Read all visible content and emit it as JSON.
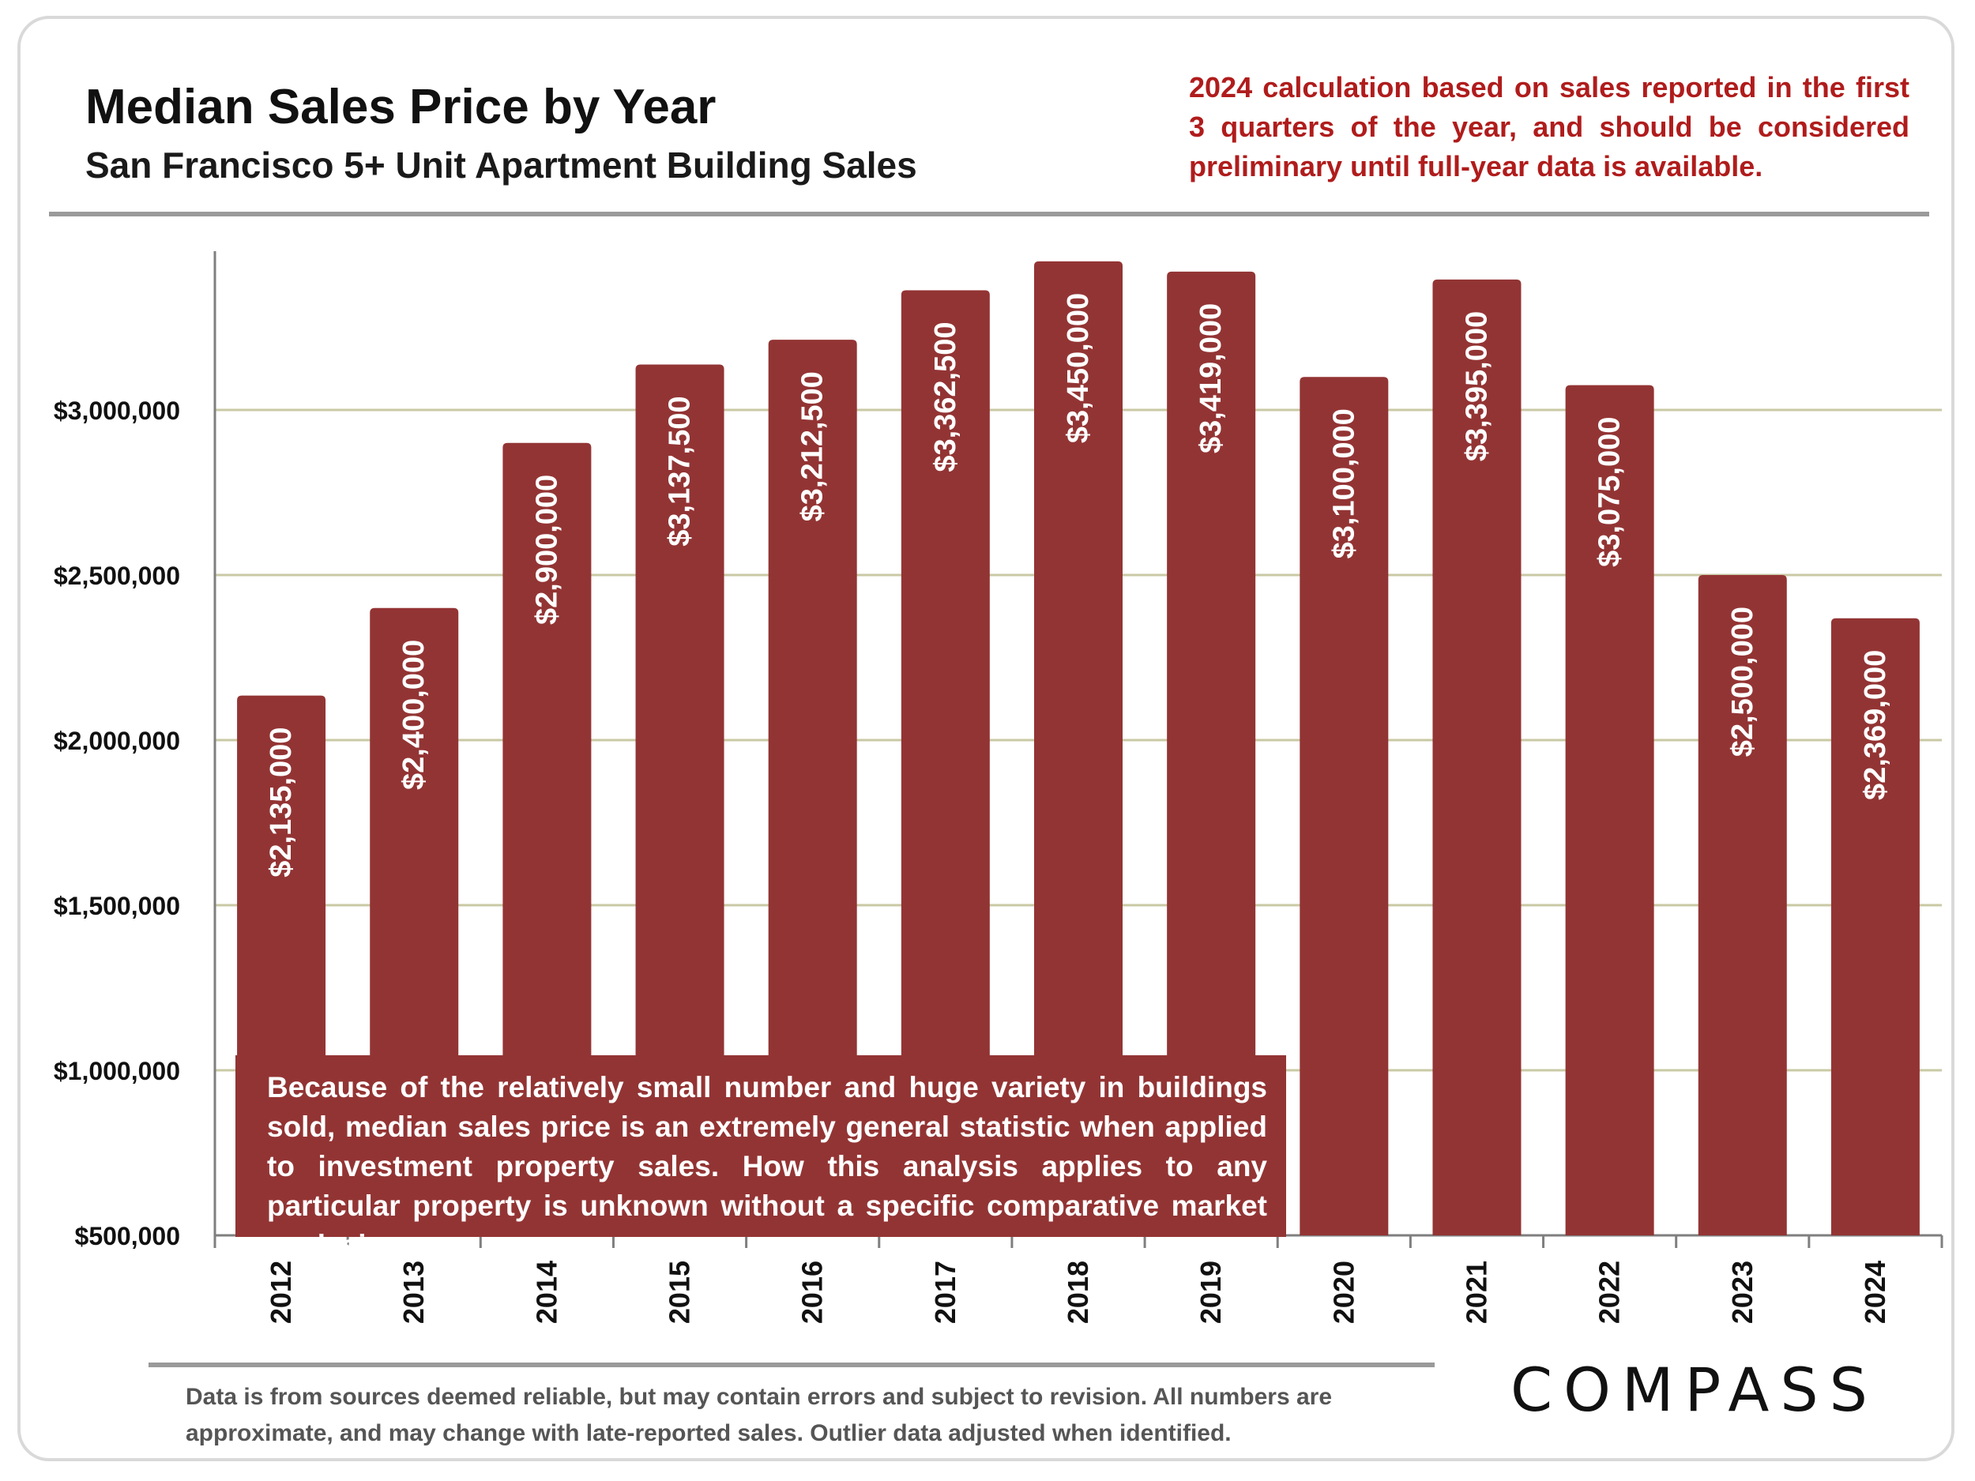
{
  "header": {
    "title": "Median Sales Price by Year",
    "subtitle": "San Francisco 5+ Unit Apartment Building Sales",
    "note": "2024 calculation based on sales reported in the first 3 quarters of the year, and should be considered preliminary until full-year data is available."
  },
  "callout": "Because of the relatively small number and huge variety in buildings sold, median sales price is an extremely general statistic when applied to investment property sales. How this analysis applies to any particular property is unknown without a specific comparative market analysis.",
  "footer": "Data is from sources deemed reliable, but may contain errors and subject to revision. All numbers are approximate, and may change with late-reported sales.  Outlier data adjusted when identified.",
  "logo": "COMPASS",
  "colors": {
    "bar": "#933434",
    "grid": "#c9c9a5",
    "note": "#b01c1c"
  },
  "chart_data": {
    "type": "bar",
    "title": "Median Sales Price by Year",
    "xlabel": "",
    "ylabel": "",
    "categories": [
      "2012",
      "2013",
      "2014",
      "2015",
      "2016",
      "2017",
      "2018",
      "2019",
      "2020",
      "2021",
      "2022",
      "2023",
      "2024"
    ],
    "values": [
      2135000,
      2400000,
      2900000,
      3137500,
      3212500,
      3362500,
      3450000,
      3419000,
      3100000,
      3395000,
      3075000,
      2500000,
      2369000
    ],
    "value_labels": [
      "$2,135,000",
      "$2,400,000",
      "$2,900,000",
      "$3,137,500",
      "$3,212,500",
      "$3,362,500",
      "$3,450,000",
      "$3,419,000",
      "$3,100,000",
      "$3,395,000",
      "$3,075,000",
      "$2,500,000",
      "$2,369,000"
    ],
    "ylim": [
      500000,
      3500000
    ],
    "yticks": [
      500000,
      1000000,
      1500000,
      2000000,
      2500000,
      3000000
    ],
    "ytick_labels": [
      "$500,000",
      "$1,000,000",
      "$1,500,000",
      "$2,000,000",
      "$2,500,000",
      "$3,000,000"
    ],
    "grid": true
  }
}
